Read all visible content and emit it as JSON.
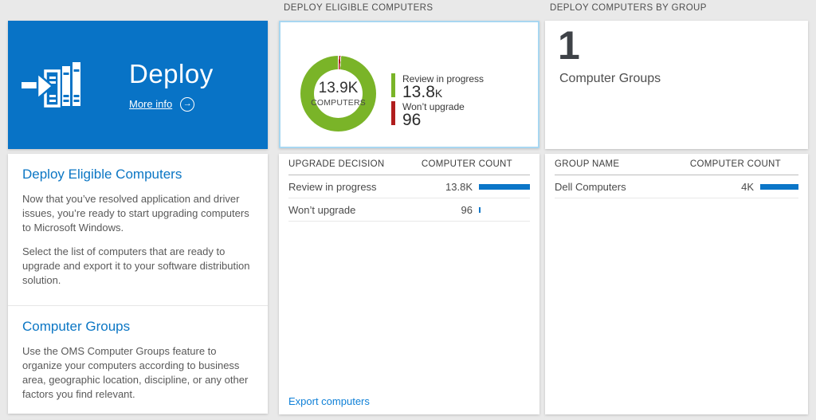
{
  "colors": {
    "tile_blue": "#0873c6",
    "heading_blue": "#0b76c4",
    "bar_blue": "#0b76c8",
    "link_blue": "#0f80d7",
    "green": "#7ab428",
    "red": "#b01d1d"
  },
  "left": {
    "tile": {
      "title": "Deploy",
      "more_info": "More info",
      "arrow_glyph": "→"
    },
    "sections": [
      {
        "heading": "Deploy Eligible Computers",
        "paragraphs": [
          "Now that you’ve resolved application and driver issues, you’re ready to start upgrading computers to Microsoft Windows.",
          "Select the list of computers that are ready to upgrade and export it to your software distribution solution."
        ]
      },
      {
        "heading": "Computer Groups",
        "paragraphs": [
          "Use the OMS Computer Groups feature to organize your computers according to business area, geographic location, discipline, or any other factors you find relevant."
        ]
      }
    ]
  },
  "middle": {
    "header": "DEPLOY ELIGIBLE COMPUTERS",
    "donut": {
      "center_value": "13.9K",
      "center_label": "COMPUTERS",
      "legend": [
        {
          "label": "Review in progress",
          "value": "13.8",
          "suffix": "K"
        },
        {
          "label": "Won’t upgrade",
          "value": "96",
          "suffix": ""
        }
      ]
    },
    "table": {
      "col_left": "UPGRADE DECISION",
      "col_right": "COMPUTER COUNT",
      "rows": [
        {
          "label": "Review in progress",
          "value": "13.8K",
          "bar_pct": 100
        },
        {
          "label": "Won’t upgrade",
          "value": "96",
          "bar_pct": 3
        }
      ]
    },
    "export_link": "Export computers"
  },
  "right": {
    "header": "DEPLOY COMPUTERS BY GROUP",
    "count": "1",
    "count_label": "Computer Groups",
    "table": {
      "col_left": "GROUP NAME",
      "col_right": "COMPUTER COUNT",
      "rows": [
        {
          "label": "Dell Computers",
          "value": "4K",
          "bar_pct": 100
        }
      ]
    }
  },
  "chart_data": {
    "type": "pie",
    "title": "Deploy Eligible Computers",
    "categories": [
      "Review in progress",
      "Won't upgrade"
    ],
    "values": [
      13800,
      96
    ],
    "total_label": "13.9K COMPUTERS",
    "legend_position": "right"
  }
}
